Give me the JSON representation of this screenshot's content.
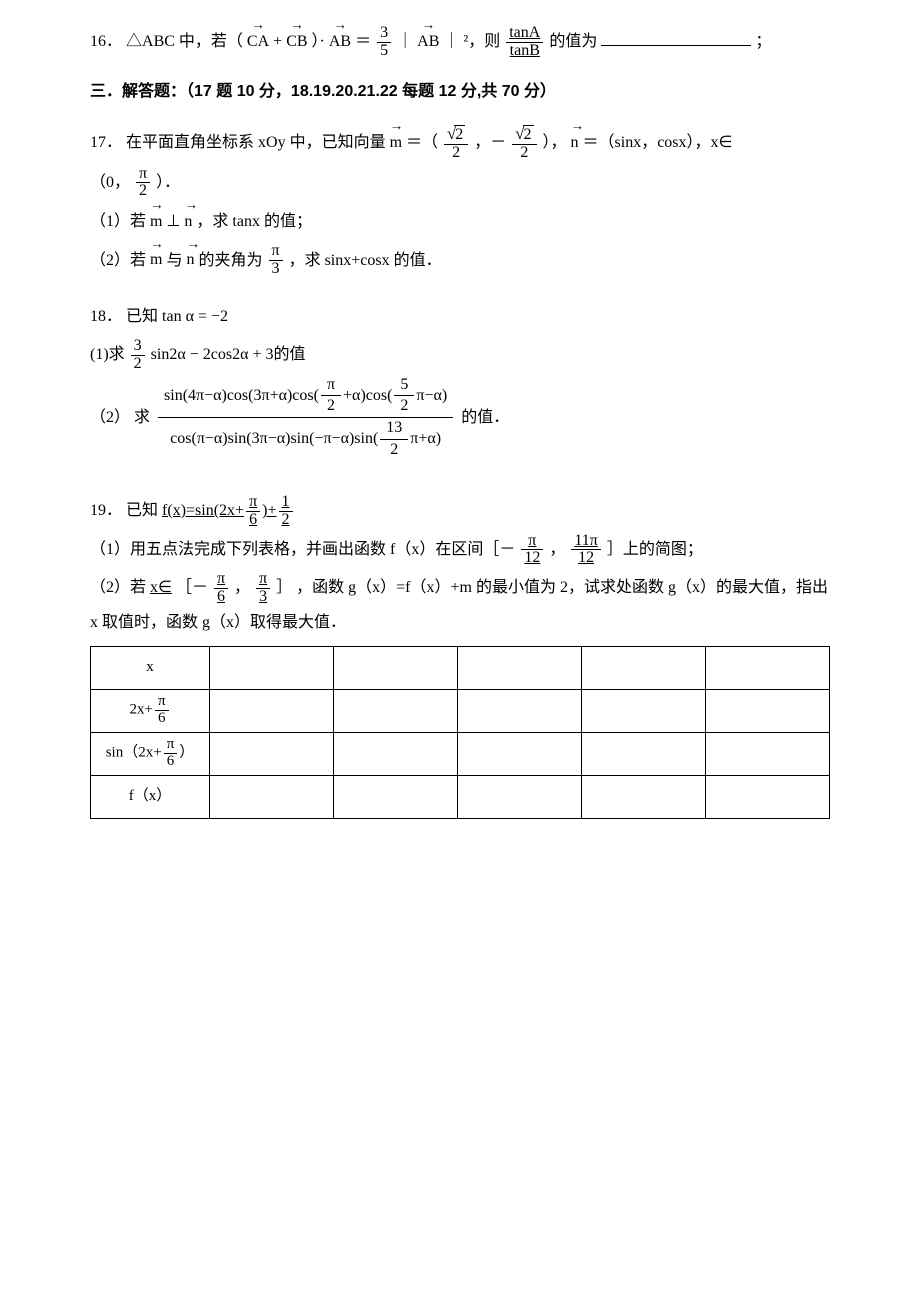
{
  "p16": {
    "num": "16．",
    "pre": "△ABC 中，若（",
    "vec_CA": "CA",
    "plus": "+",
    "vec_CB": "CB",
    "dot": "）·",
    "vec_AB1": "AB",
    "eq": "＝",
    "frac_3_5_num": "3",
    "frac_3_5_den": "5",
    "abs_pre": " ",
    "vec_AB2": "AB",
    "sq": "²，则 ",
    "frac_tan_num": "tanA",
    "frac_tan_den": "tanB",
    "post": " 的值为",
    "semi": "；"
  },
  "section3": "三．解答题：（17 题 10 分，18.19.20.21.22 每题 12 分,共 70 分）",
  "p17": {
    "num": "17．",
    "line1_pre": "在平面直角坐标系 xOy 中，已知向量 ",
    "m": "m",
    "eq1": " ＝（",
    "sqrt2": "2",
    "comma1": "，－",
    "close_n_pre": "），",
    "n": "n",
    "eq2": "＝（sinx，cosx），x∈",
    "range_open": "（0，",
    "pi": "π",
    "two": "2",
    "range_close": "）．",
    "sub1_pre": "（1）若",
    "perp": "⊥",
    "sub1_post": "，求 tanx 的值；",
    "sub2_pre": "（2）若",
    "with": "与",
    "sub2_post_a": "的夹角为",
    "three": "3",
    "sub2_post_b": "，求 sinx+cosx 的值．"
  },
  "p18": {
    "num": "18．",
    "given": "已知 tan α = −2",
    "sub1": "(1)求",
    "expr1_frac_num": "3",
    "expr1_frac_den": "2",
    "expr1_rest": "sin2α − 2cos2α + 3的值",
    "sub2": "（2） 求",
    "num_part": "sin(4π−α)cos(3π+α)cos(",
    "num_pi2": "π",
    "num_2": "2",
    "num_mid": "+α)cos(",
    "num_5_2_num": "5",
    "num_5_2_den": "2",
    "num_end": "π−α)",
    "den_part": "cos(π−α)sin(3π−α)sin(−π−α)sin(",
    "den_13_2_num": "13",
    "den_13_2_den": "2",
    "den_end": "π+α)",
    "tail": "的值．"
  },
  "p19": {
    "num": "19．",
    "given_pre": "已知",
    "fx": "f(x)=sin(2x+",
    "pi_6_num": "π",
    "pi_6_den": "6",
    "fx_mid": ")+",
    "half_num": "1",
    "half_den": "2",
    "sub1_pre": "（1）用五点法完成下列表格，并画出函数 f（x）在区间［－",
    "pi_12_num": "π",
    "pi_12_den": "12",
    "comma": "，",
    "eleven_pi_12_num": "11π",
    "eleven_pi_12_den": "12",
    "sub1_post": "］上的简图；",
    "sub2_pre": "（2）若",
    "x_in": "x∈",
    "lb": "［－",
    "pi_6b_num": "π",
    "pi_6b_den": "6",
    "pi_3_num": "π",
    "pi_3_den": "3",
    "rb": "］",
    "sub2_mid": "，函数 g（x）=f（x）+m 的最小值为 2，试求处函数 g（x）的最大值，指出 x 取值时，函数 g（x）取得最大值．",
    "tbl": {
      "r1": "x",
      "r2_pre": "2x+",
      "r3_pre": "sin（2x+",
      "r3_post": "）",
      "r4": "f（x）"
    }
  }
}
